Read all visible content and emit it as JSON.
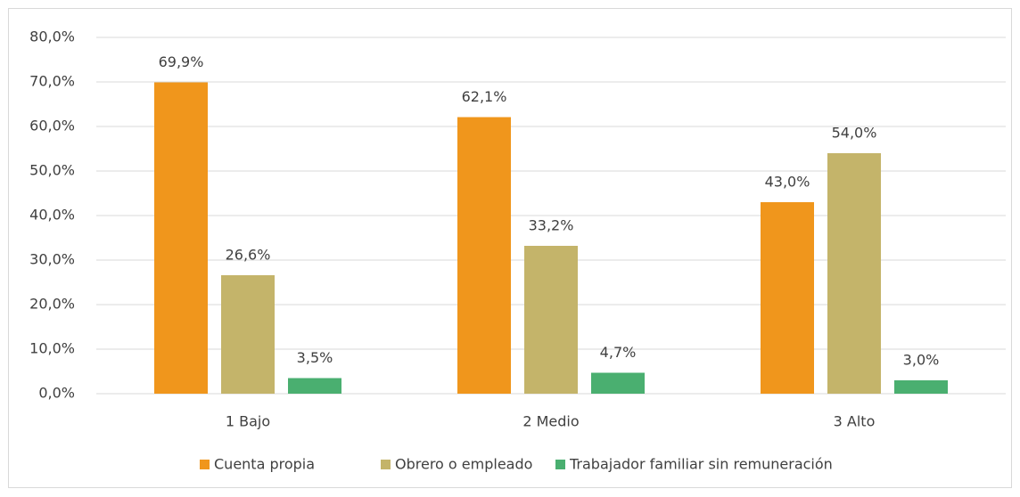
{
  "chart_data": {
    "type": "bar",
    "categories": [
      "1 Bajo",
      "2 Medio",
      "3 Alto"
    ],
    "series": [
      {
        "name": "Cuenta propia",
        "color": "#f0961c",
        "values": [
          69.9,
          62.1,
          43.0
        ],
        "value_labels": [
          "69,9%",
          "62,1%",
          "43,0%"
        ]
      },
      {
        "name": "Obrero o empleado",
        "color": "#c4b46a",
        "values": [
          26.6,
          33.2,
          54.0
        ],
        "value_labels": [
          "26,6%",
          "33,2%",
          "54,0%"
        ]
      },
      {
        "name": "Trabajador familiar sin remuneración",
        "color": "#4aaf70",
        "values": [
          3.5,
          4.7,
          3.0
        ],
        "value_labels": [
          "3,5%",
          "4,7%",
          "3,0%"
        ]
      }
    ],
    "ylim": [
      0,
      80
    ],
    "yticks": [
      {
        "value": 0,
        "label": "0,0%"
      },
      {
        "value": 10,
        "label": "10,0%"
      },
      {
        "value": 20,
        "label": "20,0%"
      },
      {
        "value": 30,
        "label": "30,0%"
      },
      {
        "value": 40,
        "label": "40,0%"
      },
      {
        "value": 50,
        "label": "50,0%"
      },
      {
        "value": 60,
        "label": "60,0%"
      },
      {
        "value": 70,
        "label": "70,0%"
      },
      {
        "value": 80,
        "label": "80,0%"
      }
    ],
    "grid": true,
    "legend": "bottom"
  }
}
